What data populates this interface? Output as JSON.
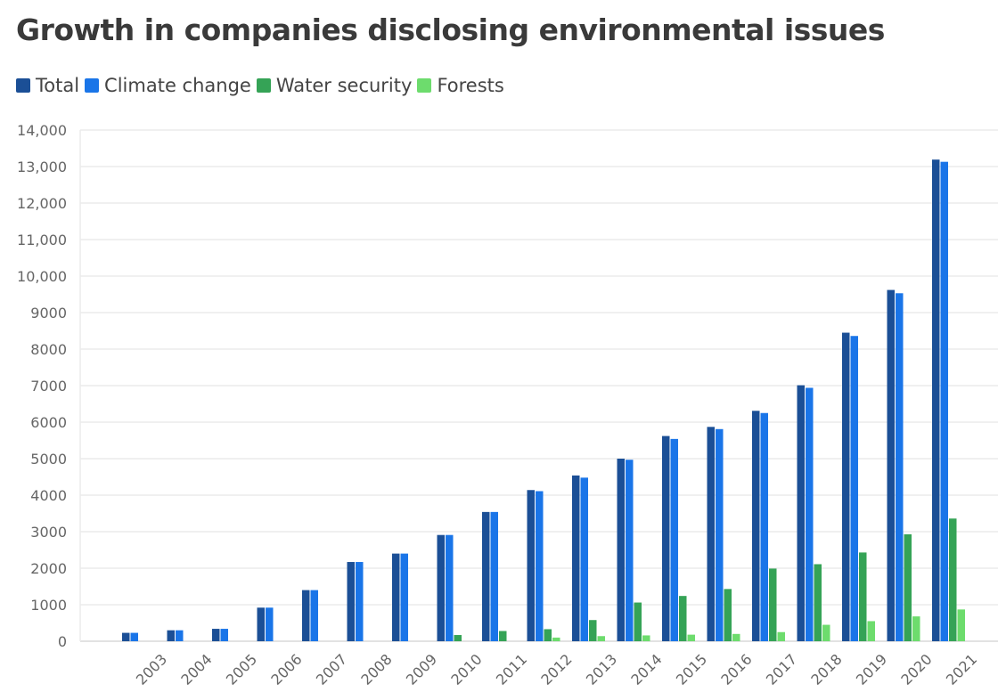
{
  "chart_data": {
    "type": "bar",
    "title": "Growth in companies disclosing environmental issues",
    "xlabel": "",
    "ylabel": "",
    "ylim": [
      0,
      14000
    ],
    "yticks": [
      0,
      1000,
      2000,
      3000,
      4000,
      5000,
      6000,
      7000,
      8000,
      9000,
      10000,
      11000,
      12000,
      13000,
      14000
    ],
    "ytick_labels": [
      "0",
      "1000",
      "2000",
      "3000",
      "4000",
      "5000",
      "6000",
      "7000",
      "8000",
      "9000",
      "10,000",
      "11,000",
      "12,000",
      "13,000",
      "14,000"
    ],
    "grid": true,
    "legend_position": "top-left",
    "categories": [
      "2003",
      "2004",
      "2005",
      "2006",
      "2007",
      "2008",
      "2009",
      "2010",
      "2011",
      "2012",
      "2013",
      "2014",
      "2015",
      "2016",
      "2017",
      "2018",
      "2019",
      "2020",
      "2021"
    ],
    "series": [
      {
        "name": "Total",
        "color": "#1b4f96",
        "values": [
          230,
          300,
          340,
          920,
          1400,
          2170,
          2400,
          2910,
          3540,
          4140,
          4540,
          5000,
          5620,
          5870,
          6310,
          7010,
          8450,
          9620,
          13190
        ]
      },
      {
        "name": "Climate change",
        "color": "#1a75e8",
        "values": [
          230,
          300,
          340,
          920,
          1400,
          2170,
          2400,
          2910,
          3540,
          4110,
          4480,
          4970,
          5540,
          5810,
          6250,
          6940,
          8360,
          9530,
          13130
        ]
      },
      {
        "name": "Water security",
        "color": "#35a356",
        "values": [
          0,
          0,
          0,
          0,
          0,
          0,
          0,
          170,
          280,
          330,
          580,
          1060,
          1240,
          1430,
          1990,
          2110,
          2430,
          2930,
          3360
        ]
      },
      {
        "name": "Forests",
        "color": "#6ddc6d",
        "values": [
          0,
          0,
          0,
          0,
          0,
          0,
          0,
          0,
          0,
          100,
          140,
          160,
          180,
          200,
          250,
          450,
          550,
          680,
          870
        ]
      }
    ]
  }
}
